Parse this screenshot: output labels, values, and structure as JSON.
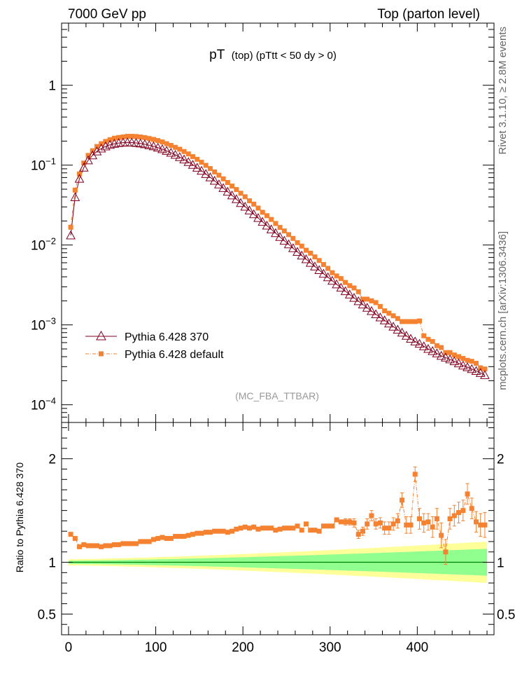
{
  "header": {
    "left": "7000 GeV pp",
    "right": "Top (parton level)"
  },
  "side_labels": {
    "rivet": "Rivet 3.1.10, ≥ 2.8M events",
    "mcplots": "mcplots.cern.ch [arXiv:1306.3436]"
  },
  "chart_data": [
    {
      "type": "line",
      "panel": "main",
      "title_main": "pT",
      "title_sub": "(top) (pTtt < 50 dy > 0)",
      "watermark": "(MC_FBA_TTBAR)",
      "y_scale": "log",
      "xlim": [
        -8,
        488
      ],
      "ylim": [
        6e-05,
        6
      ],
      "x_ticks": [
        "0",
        "100",
        "200",
        "300",
        "400"
      ],
      "y_ticks": [
        {
          "value": 1,
          "base": "1",
          "exp": ""
        },
        {
          "value": 0.1,
          "base": "10",
          "exp": "−1"
        },
        {
          "value": 0.01,
          "base": "10",
          "exp": "−2"
        },
        {
          "value": 0.001,
          "base": "10",
          "exp": "−3"
        },
        {
          "value": 0.0001,
          "base": "10",
          "exp": "−4"
        }
      ],
      "legend_position": "bottom-left",
      "series": [
        {
          "name": "Pythia 6.428 370",
          "color": "#800020",
          "marker": "open-triangle",
          "x": [
            2.5,
            7.5,
            12.5,
            17.5,
            22.5,
            27.5,
            32.5,
            37.5,
            42.5,
            47.5,
            52.5,
            57.5,
            62.5,
            67.5,
            72.5,
            77.5,
            82.5,
            87.5,
            92.5,
            97.5,
            102.5,
            107.5,
            112.5,
            117.5,
            122.5,
            127.5,
            132.5,
            137.5,
            142.5,
            147.5,
            152.5,
            157.5,
            162.5,
            167.5,
            172.5,
            177.5,
            182.5,
            187.5,
            192.5,
            197.5,
            202.5,
            207.5,
            212.5,
            217.5,
            222.5,
            227.5,
            232.5,
            237.5,
            242.5,
            247.5,
            252.5,
            257.5,
            262.5,
            267.5,
            272.5,
            277.5,
            282.5,
            287.5,
            292.5,
            297.5,
            302.5,
            307.5,
            312.5,
            317.5,
            322.5,
            327.5,
            332.5,
            337.5,
            342.5,
            347.5,
            352.5,
            357.5,
            362.5,
            367.5,
            372.5,
            377.5,
            382.5,
            387.5,
            392.5,
            397.5,
            402.5,
            407.5,
            412.5,
            417.5,
            422.5,
            427.5,
            432.5,
            437.5,
            442.5,
            447.5,
            452.5,
            457.5,
            462.5,
            467.5,
            472.5,
            477.5
          ],
          "y": [
            0.0132,
            0.0397,
            0.0675,
            0.0931,
            0.1149,
            0.1327,
            0.1484,
            0.1614,
            0.1716,
            0.1795,
            0.1851,
            0.1892,
            0.1914,
            0.1924,
            0.1917,
            0.1898,
            0.1868,
            0.1828,
            0.1779,
            0.1721,
            0.1656,
            0.1585,
            0.1509,
            0.1429,
            0.1346,
            0.1262,
            0.1178,
            0.1093,
            0.101,
            0.0929,
            0.085,
            0.0775,
            0.0704,
            0.0637,
            0.0574,
            0.0517,
            0.0465,
            0.0418,
            0.0375,
            0.0336,
            0.0302,
            0.0271,
            0.0243,
            0.0218,
            0.0195,
            0.0175,
            0.0157,
            0.0141,
            0.0126,
            0.0113,
            0.0102,
            0.00913,
            0.00821,
            0.00738,
            0.00664,
            0.00598,
            0.00538,
            0.00485,
            0.00437,
            0.00395,
            0.00357,
            0.00322,
            0.00292,
            0.00264,
            0.0024,
            0.00218,
            0.00198,
            0.0018,
            0.00164,
            0.00149,
            0.00136,
            0.00124,
            0.00114,
            0.00104,
            0.00095,
            0.00087,
            0.0008,
            0.00073,
            0.00067,
            0.00062,
            0.00058,
            0.00054,
            0.0005,
            0.00047,
            0.00044,
            0.00041,
            0.00039,
            0.00037,
            0.00035,
            0.00033,
            0.00031,
            0.000295,
            0.00028,
            0.000265,
            0.00025,
            0.000235
          ]
        },
        {
          "name": "Pythia 6.428 default",
          "color": "#f58231",
          "marker": "filled-square",
          "x": [
            2.5,
            7.5,
            12.5,
            17.5,
            22.5,
            27.5,
            32.5,
            37.5,
            42.5,
            47.5,
            52.5,
            57.5,
            62.5,
            67.5,
            72.5,
            77.5,
            82.5,
            87.5,
            92.5,
            97.5,
            102.5,
            107.5,
            112.5,
            117.5,
            122.5,
            127.5,
            132.5,
            137.5,
            142.5,
            147.5,
            152.5,
            157.5,
            162.5,
            167.5,
            172.5,
            177.5,
            182.5,
            187.5,
            192.5,
            197.5,
            202.5,
            207.5,
            212.5,
            217.5,
            222.5,
            227.5,
            232.5,
            237.5,
            242.5,
            247.5,
            252.5,
            257.5,
            262.5,
            267.5,
            272.5,
            277.5,
            282.5,
            287.5,
            292.5,
            297.5,
            302.5,
            307.5,
            312.5,
            317.5,
            322.5,
            327.5,
            332.5,
            337.5,
            342.5,
            347.5,
            352.5,
            357.5,
            362.5,
            367.5,
            372.5,
            377.5,
            382.5,
            387.5,
            392.5,
            397.5,
            402.5,
            407.5,
            412.5,
            417.5,
            422.5,
            427.5,
            432.5,
            437.5,
            442.5,
            447.5,
            452.5,
            457.5,
            462.5,
            467.5,
            472.5,
            477.5
          ],
          "y": [
            0.0167,
            0.0487,
            0.0776,
            0.1062,
            0.1323,
            0.1515,
            0.1712,
            0.1856,
            0.1981,
            0.2085,
            0.2169,
            0.2219,
            0.2255,
            0.2294,
            0.2298,
            0.2283,
            0.2254,
            0.2214,
            0.2155,
            0.2099,
            0.2032,
            0.1952,
            0.1857,
            0.1767,
            0.1671,
            0.1582,
            0.1481,
            0.1382,
            0.1278,
            0.1184,
            0.1087,
            0.0994,
            0.0906,
            0.0822,
            0.0748,
            0.0674,
            0.0606,
            0.0547,
            0.0495,
            0.0445,
            0.0402,
            0.0358,
            0.0325,
            0.029,
            0.0257,
            0.0233,
            0.0209,
            0.0186,
            0.0166,
            0.015,
            0.0135,
            0.0121,
            0.0107,
            0.0097,
            0.0086,
            0.0079,
            0.0071,
            0.0064,
            0.0057,
            0.0051,
            0.0045,
            0.0041,
            0.0038,
            0.0034,
            0.0031,
            0.0029,
            0.0026,
            0.0021,
            0.0021,
            0.002,
            0.0019,
            0.0017,
            0.0015,
            0.0014,
            0.0013,
            0.0012,
            0.0011,
            0.0011,
            0.0011,
            0.0011,
            0.00112,
            0.00073,
            0.00066,
            0.00062,
            0.00055,
            0.00052,
            0.00045,
            0.00045,
            0.00042,
            0.0004,
            0.00038,
            0.00036,
            0.00035,
            0.00033,
            0.00029,
            0.00028
          ]
        }
      ]
    },
    {
      "type": "line",
      "panel": "ratio",
      "ylabel": "Ratio to Pythia 6.428 370",
      "y_scale": "linear",
      "xlim": [
        -8,
        488
      ],
      "ylim": [
        0.3,
        2.35
      ],
      "x_ticks": [
        "0",
        "100",
        "200",
        "300",
        "400"
      ],
      "y_ticks": [
        "0.5",
        "1",
        "2"
      ],
      "band_colors": {
        "inner": "#90ff90",
        "outer": "#ffff99",
        "reference": "#008000"
      },
      "band": {
        "x_range": [
          0,
          480
        ],
        "inner_halfwidth": [
          0.015,
          0.13
        ],
        "outer_halfwidth": [
          0.03,
          0.2
        ]
      },
      "series": [
        {
          "name": "Pythia 6.428 default",
          "color": "#f58231",
          "x": [
            2.5,
            7.5,
            12.5,
            17.5,
            22.5,
            27.5,
            32.5,
            37.5,
            42.5,
            47.5,
            52.5,
            57.5,
            62.5,
            67.5,
            72.5,
            77.5,
            82.5,
            87.5,
            92.5,
            97.5,
            102.5,
            107.5,
            112.5,
            117.5,
            122.5,
            127.5,
            132.5,
            137.5,
            142.5,
            147.5,
            152.5,
            157.5,
            162.5,
            167.5,
            172.5,
            177.5,
            182.5,
            187.5,
            192.5,
            197.5,
            202.5,
            207.5,
            212.5,
            217.5,
            222.5,
            227.5,
            232.5,
            237.5,
            242.5,
            247.5,
            252.5,
            257.5,
            262.5,
            267.5,
            272.5,
            277.5,
            282.5,
            287.5,
            292.5,
            297.5,
            302.5,
            307.5,
            312.5,
            317.5,
            322.5,
            327.5,
            332.5,
            337.5,
            342.5,
            347.5,
            352.5,
            357.5,
            362.5,
            367.5,
            372.5,
            377.5,
            382.5,
            387.5,
            392.5,
            397.5,
            402.5,
            407.5,
            412.5,
            417.5,
            422.5,
            427.5,
            432.5,
            437.5,
            442.5,
            447.5,
            452.5,
            457.5,
            462.5,
            467.5,
            472.5,
            477.5
          ],
          "y": [
            1.27,
            1.23,
            1.15,
            1.17,
            1.16,
            1.16,
            1.16,
            1.15,
            1.16,
            1.16,
            1.17,
            1.17,
            1.18,
            1.18,
            1.18,
            1.18,
            1.2,
            1.2,
            1.2,
            1.22,
            1.23,
            1.24,
            1.23,
            1.23,
            1.25,
            1.25,
            1.25,
            1.26,
            1.27,
            1.28,
            1.28,
            1.29,
            1.29,
            1.3,
            1.3,
            1.3,
            1.29,
            1.3,
            1.32,
            1.33,
            1.34,
            1.33,
            1.34,
            1.32,
            1.33,
            1.33,
            1.33,
            1.31,
            1.32,
            1.33,
            1.33,
            1.33,
            1.35,
            1.31,
            1.37,
            1.31,
            1.31,
            1.3,
            1.35,
            1.35,
            1.35,
            1.41,
            1.39,
            1.39,
            1.39,
            1.38,
            1.27,
            1.3,
            1.37,
            1.45,
            1.37,
            1.38,
            1.33,
            1.33,
            1.37,
            1.4,
            1.6,
            1.36,
            1.36,
            1.85,
            1.42,
            1.38,
            1.39,
            1.34,
            1.42,
            1.26,
            1.1,
            1.42,
            1.45,
            1.48,
            1.5,
            1.66,
            1.52,
            1.39,
            1.36,
            1.36
          ],
          "err": [
            0.02,
            0.02,
            0.02,
            0.02,
            0.02,
            0.02,
            0.02,
            0.02,
            0.02,
            0.02,
            0.02,
            0.02,
            0.02,
            0.02,
            0.02,
            0.02,
            0.02,
            0.02,
            0.02,
            0.02,
            0.02,
            0.02,
            0.02,
            0.02,
            0.02,
            0.02,
            0.02,
            0.02,
            0.02,
            0.02,
            0.02,
            0.02,
            0.02,
            0.02,
            0.02,
            0.02,
            0.02,
            0.02,
            0.02,
            0.02,
            0.02,
            0.02,
            0.02,
            0.02,
            0.02,
            0.02,
            0.02,
            0.02,
            0.02,
            0.02,
            0.02,
            0.02,
            0.02,
            0.02,
            0.02,
            0.02,
            0.02,
            0.02,
            0.02,
            0.02,
            0.02,
            0.02,
            0.02,
            0.03,
            0.03,
            0.04,
            0.04,
            0.04,
            0.05,
            0.05,
            0.05,
            0.05,
            0.06,
            0.06,
            0.06,
            0.07,
            0.07,
            0.08,
            0.08,
            0.07,
            0.1,
            0.09,
            0.08,
            0.1,
            0.1,
            0.12,
            0.12,
            0.1,
            0.1,
            0.1,
            0.1,
            0.1,
            0.1,
            0.1,
            0.11,
            0.12
          ]
        }
      ]
    }
  ]
}
